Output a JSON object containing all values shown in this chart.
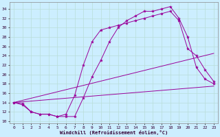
{
  "xlabel": "Windchill (Refroidissement éolien,°C)",
  "background_color": "#cceeff",
  "grid_color": "#b8ddd8",
  "line_color": "#990099",
  "xlim": [
    -0.5,
    23.5
  ],
  "ylim": [
    9.5,
    35.5
  ],
  "yticks": [
    10,
    12,
    14,
    16,
    18,
    20,
    22,
    24,
    26,
    28,
    30,
    32,
    34
  ],
  "xticks": [
    0,
    1,
    2,
    3,
    4,
    5,
    6,
    7,
    8,
    9,
    10,
    11,
    12,
    13,
    14,
    15,
    16,
    17,
    18,
    19,
    20,
    21,
    22,
    23
  ],
  "series1_x": [
    0,
    1,
    2,
    3,
    4,
    5,
    6,
    7,
    8,
    9,
    10,
    11,
    12,
    13,
    14,
    15,
    16,
    17,
    18,
    19,
    20,
    21,
    22,
    23
  ],
  "series1_y": [
    14.0,
    13.8,
    12.0,
    11.5,
    11.5,
    11.0,
    11.0,
    11.0,
    15.0,
    19.5,
    23.0,
    27.0,
    30.0,
    31.5,
    32.5,
    33.5,
    33.5,
    34.0,
    34.5,
    32.0,
    28.0,
    21.5,
    19.0,
    18.0
  ],
  "series2_x": [
    0,
    1,
    2,
    3,
    4,
    5,
    6,
    7,
    8,
    9,
    10,
    11,
    12,
    13,
    14,
    15,
    16,
    17,
    18,
    19,
    20,
    21,
    22,
    23
  ],
  "series2_y": [
    14.0,
    13.5,
    12.0,
    11.5,
    11.5,
    11.0,
    11.5,
    15.5,
    22.0,
    27.0,
    29.5,
    30.0,
    30.5,
    31.0,
    31.5,
    32.0,
    32.5,
    33.0,
    33.5,
    31.5,
    25.5,
    24.0,
    21.0,
    18.5
  ],
  "series3_x": [
    0,
    23
  ],
  "series3_y": [
    14.0,
    24.5
  ],
  "series4_x": [
    0,
    23
  ],
  "series4_y": [
    14.0,
    17.5
  ]
}
